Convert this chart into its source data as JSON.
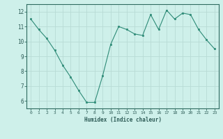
{
  "x": [
    0,
    1,
    2,
    3,
    4,
    5,
    6,
    7,
    8,
    9,
    10,
    11,
    12,
    13,
    14,
    15,
    16,
    17,
    18,
    19,
    20,
    21,
    22,
    23
  ],
  "y": [
    11.5,
    10.8,
    10.2,
    9.4,
    8.4,
    7.6,
    6.7,
    5.9,
    5.9,
    7.7,
    9.8,
    11.0,
    10.8,
    10.5,
    10.4,
    11.8,
    10.8,
    12.1,
    11.5,
    11.9,
    11.8,
    10.8,
    10.1,
    9.5
  ],
  "xlabel": "Humidex (Indice chaleur)",
  "ylim": [
    5.5,
    12.5
  ],
  "xlim": [
    -0.5,
    23.5
  ],
  "yticks": [
    6,
    7,
    8,
    9,
    10,
    11,
    12
  ],
  "xticks": [
    0,
    1,
    2,
    3,
    4,
    5,
    6,
    7,
    8,
    9,
    10,
    11,
    12,
    13,
    14,
    15,
    16,
    17,
    18,
    19,
    20,
    21,
    22,
    23
  ],
  "line_color": "#2e8b77",
  "marker_color": "#2e8b77",
  "bg_color": "#cef0ea",
  "grid_color": "#b8dbd5",
  "axis_color": "#2e8b77",
  "text_color": "#2e5c57",
  "spine_color": "#2e6b60"
}
